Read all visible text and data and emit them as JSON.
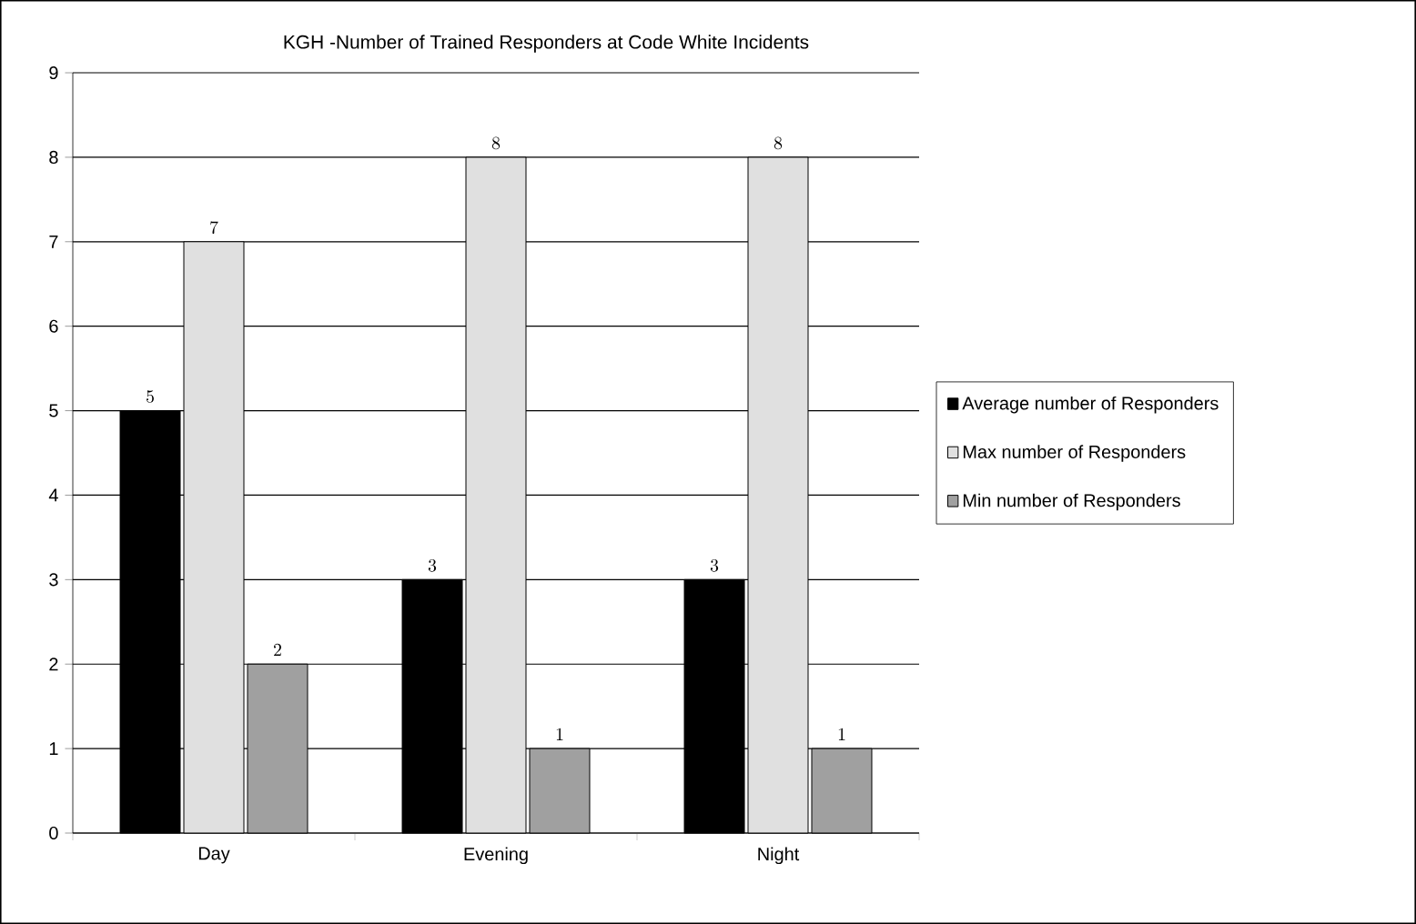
{
  "chart_data": {
    "type": "bar",
    "title": "KGH -Number of Trained Responders at Code White Incidents",
    "categories": [
      "Day",
      "Evening",
      "Night"
    ],
    "series": [
      {
        "name": "Average number of Responders",
        "color": "#000000",
        "values": [
          5,
          3,
          3
        ]
      },
      {
        "name": "Max number of Responders",
        "color": "#e0e0e0",
        "values": [
          7,
          8,
          8
        ]
      },
      {
        "name": "Min number of Responders",
        "color": "#a0a0a0",
        "values": [
          2,
          1,
          1
        ]
      }
    ],
    "ylim": [
      0,
      9
    ],
    "yticks": [
      0,
      1,
      2,
      3,
      4,
      5,
      6,
      7,
      8,
      9
    ],
    "grid": "y",
    "legend": "right",
    "data_labels": true
  }
}
